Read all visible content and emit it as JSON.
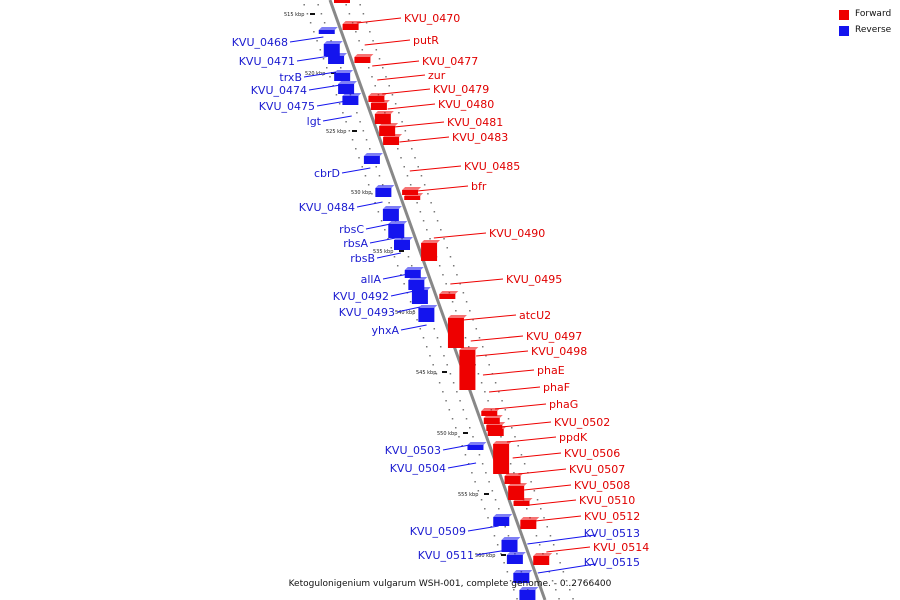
{
  "colors": {
    "forward": "#ee0000",
    "reverse": "#1414ee",
    "backbone": "#888888"
  },
  "legend": {
    "forward": "Forward",
    "reverse": "Reverse"
  },
  "caption": "Ketogulonigenium vulgarum WSH-001, complete genome. - 0..2766400",
  "ticks": [
    "515 kbp",
    "520 kbp",
    "525 kbp",
    "530 kbp",
    "535 kbp",
    "540 kbp",
    "545 kbp",
    "550 kbp",
    "555 kbp",
    "560 kbp"
  ],
  "forward_genes": [
    "KVU_0470",
    "putR",
    "KVU_0477",
    "zur",
    "KVU_0479",
    "KVU_0480",
    "KVU_0481",
    "KVU_0483",
    "KVU_0485",
    "bfr",
    "KVU_0490",
    "KVU_0495",
    "atcU2",
    "KVU_0497",
    "KVU_0498",
    "phaE",
    "phaF",
    "phaG",
    "KVU_0502",
    "ppdK",
    "KVU_0506",
    "KVU_0507",
    "KVU_0508",
    "KVU_0510",
    "KVU_0512",
    "KVU_0514"
  ],
  "reverse_genes": [
    "KVU_0468",
    "KVU_0471",
    "trxB",
    "KVU_0474",
    "KVU_0475",
    "lgt",
    "cbrD",
    "KVU_0484",
    "rbsC",
    "rbsA",
    "rbsB",
    "allA",
    "KVU_0492",
    "KVU_0493",
    "yhxA",
    "KVU_0503",
    "KVU_0504",
    "KVU_0509",
    "KVU_0511",
    "KVU_0513",
    "KVU_0515"
  ]
}
